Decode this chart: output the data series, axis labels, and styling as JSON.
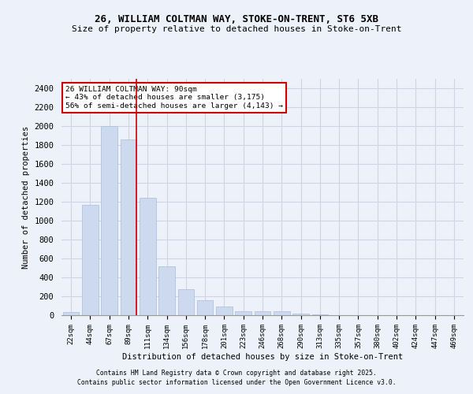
{
  "title1": "26, WILLIAM COLTMAN WAY, STOKE-ON-TRENT, ST6 5XB",
  "title2": "Size of property relative to detached houses in Stoke-on-Trent",
  "xlabel": "Distribution of detached houses by size in Stoke-on-Trent",
  "ylabel": "Number of detached properties",
  "categories": [
    "22sqm",
    "44sqm",
    "67sqm",
    "89sqm",
    "111sqm",
    "134sqm",
    "156sqm",
    "178sqm",
    "201sqm",
    "223sqm",
    "246sqm",
    "268sqm",
    "290sqm",
    "313sqm",
    "335sqm",
    "357sqm",
    "380sqm",
    "402sqm",
    "424sqm",
    "447sqm",
    "469sqm"
  ],
  "values": [
    30,
    1170,
    2000,
    1860,
    1240,
    520,
    275,
    155,
    90,
    45,
    40,
    40,
    20,
    5,
    3,
    2,
    2,
    2,
    2,
    2,
    2
  ],
  "bar_color": "#ccd9ee",
  "bar_edge_color": "#a8bdd8",
  "grid_color": "#cdd5e5",
  "background_color": "#edf1f9",
  "annotation_text": "26 WILLIAM COLTMAN WAY: 90sqm\n← 43% of detached houses are smaller (3,175)\n56% of semi-detached houses are larger (4,143) →",
  "annotation_box_color": "#ffffff",
  "annotation_box_edge": "#cc0000",
  "footer1": "Contains HM Land Registry data © Crown copyright and database right 2025.",
  "footer2": "Contains public sector information licensed under the Open Government Licence v3.0."
}
